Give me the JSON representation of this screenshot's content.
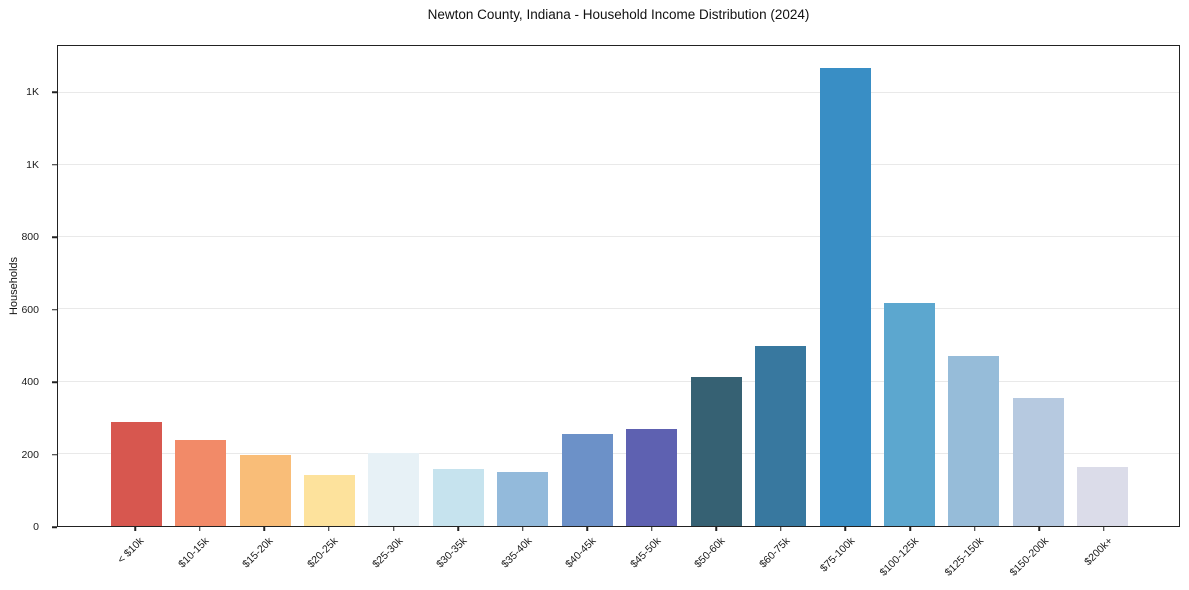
{
  "title": "Newton County, Indiana - Household Income Distribution (2024)",
  "chart_data": {
    "type": "bar",
    "title": "Newton County, Indiana - Household Income Distribution (2024)",
    "xlabel": "",
    "ylabel": "Households",
    "categories": [
      "< $10k",
      "$10-15k",
      "$15-20k",
      "$20-25k",
      "$25-30k",
      "$30-35k",
      "$35-40k",
      "$40-45k",
      "$45-50k",
      "$50-60k",
      "$60-75k",
      "$75-100k",
      "$100-125k",
      "$125-150k",
      "$150-200k",
      "$200k+"
    ],
    "values": [
      288,
      238,
      197,
      142,
      203,
      158,
      151,
      256,
      270,
      413,
      499,
      1268,
      618,
      471,
      355,
      164
    ],
    "bar_colors": [
      "#d7574f",
      "#f28a68",
      "#f9bd78",
      "#fde29c",
      "#e7f1f6",
      "#c6e3ee",
      "#93badb",
      "#6c91c8",
      "#5e61b1",
      "#366173",
      "#38789f",
      "#398ec5",
      "#5ca7cf",
      "#96bcd9",
      "#b6c9e0",
      "#dbdce9"
    ],
    "ylim": [
      0,
      1330
    ],
    "yticks": [
      {
        "value": 0,
        "label": "0"
      },
      {
        "value": 200,
        "label": "200"
      },
      {
        "value": 400,
        "label": "400"
      },
      {
        "value": 600,
        "label": "600"
      },
      {
        "value": 800,
        "label": "800"
      },
      {
        "value": 1000,
        "label": "1K"
      },
      {
        "value": 1200,
        "label": "1K"
      }
    ],
    "grid": "horizontal",
    "legend": "none",
    "plot_background": "#ffffff"
  },
  "colors": {
    "background": "#ffffff",
    "grid": "#e9e9e9",
    "spine": "#222222",
    "text": "#111111",
    "tick_text": "#1c1c1c"
  }
}
